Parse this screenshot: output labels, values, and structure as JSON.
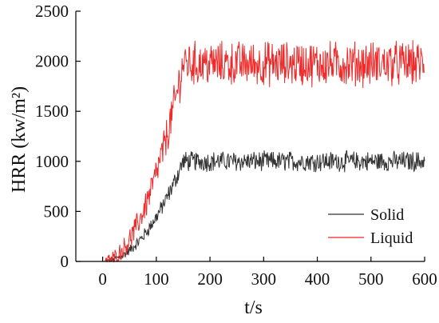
{
  "chart_data": {
    "type": "line",
    "xlabel": "t/s",
    "ylabel": "HRR (kw/m²)",
    "xlim": [
      -50,
      600
    ],
    "ylim": [
      0,
      2500
    ],
    "xticks": [
      0,
      100,
      200,
      300,
      400,
      500,
      600
    ],
    "yticks": [
      0,
      500,
      1000,
      1500,
      2000,
      2500
    ],
    "grid": false,
    "legend_position": "bottom-right",
    "series": [
      {
        "name": "Solid",
        "color": "#333333",
        "ramp": {
          "start_t": 0,
          "end_t": 150,
          "plateau": 1000
        },
        "noise_amplitude": 90,
        "sample_points": [
          {
            "t": 0,
            "hrr": 0
          },
          {
            "t": 50,
            "hrr": 110
          },
          {
            "t": 100,
            "hrr": 440
          },
          {
            "t": 150,
            "hrr": 1000
          },
          {
            "t": 300,
            "hrr": 1000
          },
          {
            "t": 450,
            "hrr": 1000
          },
          {
            "t": 600,
            "hrr": 1000
          }
        ]
      },
      {
        "name": "Liquid",
        "color": "#ee2a2a",
        "ramp": {
          "start_t": 0,
          "end_t": 150,
          "plateau": 1975
        },
        "noise_amplitude": 200,
        "sample_points": [
          {
            "t": 0,
            "hrr": 0
          },
          {
            "t": 50,
            "hrr": 220
          },
          {
            "t": 100,
            "hrr": 880
          },
          {
            "t": 150,
            "hrr": 1975
          },
          {
            "t": 300,
            "hrr": 1975
          },
          {
            "t": 450,
            "hrr": 1975
          },
          {
            "t": 600,
            "hrr": 1975
          }
        ]
      }
    ]
  }
}
